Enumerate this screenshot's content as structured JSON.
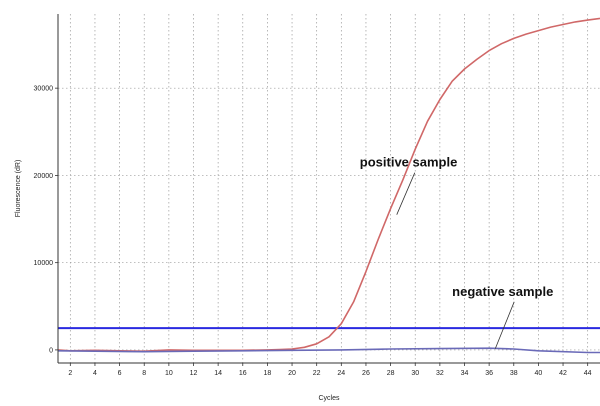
{
  "chart_data": {
    "type": "line",
    "title": "",
    "xlabel": "Cycles",
    "ylabel": "Fluorescence (dR)",
    "xlim": [
      1,
      45
    ],
    "ylim": [
      -1500,
      38500
    ],
    "x_ticks": [
      2,
      4,
      6,
      8,
      10,
      12,
      14,
      16,
      18,
      20,
      22,
      24,
      26,
      28,
      30,
      32,
      34,
      36,
      38,
      40,
      42,
      44
    ],
    "y_ticks": [
      0,
      10000,
      20000,
      30000
    ],
    "grid": true,
    "threshold": 2500,
    "colors": {
      "positive": "#d06868",
      "negative": "#6a6ab8",
      "threshold": "#2a2ae0",
      "grid": "#9a9a9a"
    },
    "series": [
      {
        "x": [
          1,
          2,
          4,
          6,
          8,
          10,
          12,
          14,
          16,
          18,
          19,
          20,
          21,
          22,
          23,
          24,
          25,
          26,
          27,
          28,
          29,
          30,
          31,
          32,
          33,
          34,
          35,
          36,
          37,
          38,
          39,
          40,
          41,
          42,
          43,
          44,
          45
        ],
        "values": [
          0,
          -100,
          -50,
          -100,
          -150,
          0,
          -50,
          -50,
          -50,
          0,
          50,
          100,
          300,
          700,
          1500,
          3000,
          5500,
          9000,
          12700,
          16200,
          19500,
          23000,
          26200,
          28700,
          30800,
          32200,
          33300,
          34300,
          35100,
          35700,
          36200,
          36600,
          37000,
          37300,
          37600,
          37800,
          38000
        ]
      },
      {
        "x": [
          1,
          4,
          8,
          12,
          16,
          20,
          24,
          28,
          32,
          36,
          38,
          40,
          44,
          45
        ],
        "values": [
          -100,
          -150,
          -200,
          -150,
          -100,
          -50,
          0,
          100,
          150,
          200,
          100,
          -100,
          -300,
          -300
        ]
      }
    ],
    "annotations": [
      {
        "text": "positive sample",
        "x": 25.5,
        "y": 21000,
        "point_x": 28.5,
        "point_y": 15500
      },
      {
        "text": "negative sample",
        "x": 33,
        "y": 6200,
        "point_x": 36.5,
        "point_y": 150
      }
    ]
  }
}
